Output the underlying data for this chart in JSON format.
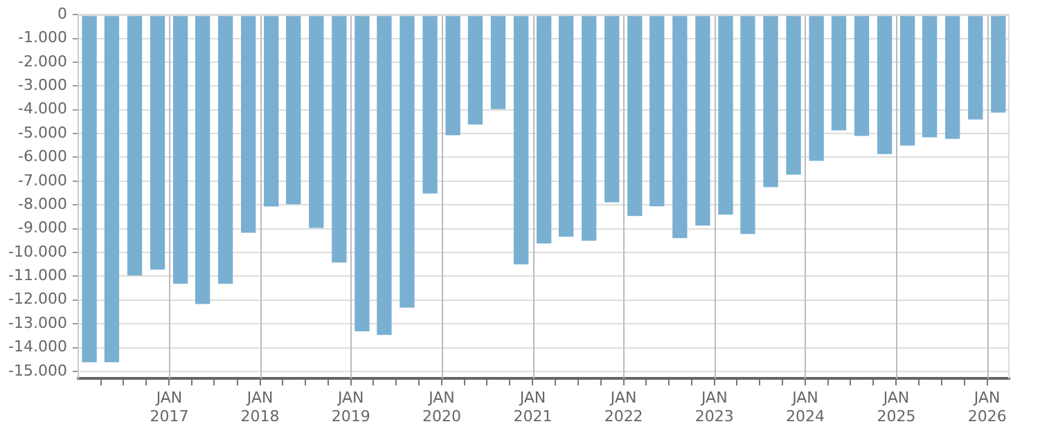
{
  "chart_data": {
    "type": "bar",
    "color": "#79afd1",
    "grid": true,
    "x": [
      "2016-02-15",
      "2016-05-15",
      "2016-08-15",
      "2016-11-15",
      "2017-02-15",
      "2017-05-15",
      "2017-08-15",
      "2017-11-15",
      "2018-02-15",
      "2018-05-15",
      "2018-08-15",
      "2018-11-15",
      "2019-02-15",
      "2019-05-15",
      "2019-08-15",
      "2019-11-15",
      "2020-02-15",
      "2020-05-15",
      "2020-08-15",
      "2020-11-15",
      "2021-02-15",
      "2021-05-15",
      "2021-08-15",
      "2021-11-15",
      "2022-02-15",
      "2022-05-15",
      "2022-08-15",
      "2022-11-15",
      "2023-02-15",
      "2023-05-15",
      "2023-08-15",
      "2023-11-15",
      "2024-02-15",
      "2024-05-15",
      "2024-08-15",
      "2024-11-15",
      "2025-02-15",
      "2025-05-15",
      "2025-08-15",
      "2025-11-15",
      "2026-02-15"
    ],
    "values": [
      -14600,
      -14600,
      -10950,
      -10700,
      -11300,
      -12150,
      -11300,
      -9150,
      -8050,
      -7950,
      -8950,
      -10400,
      -13300,
      -13450,
      -12300,
      -7500,
      -5050,
      -4600,
      -3950,
      -10480,
      -9600,
      -9320,
      -9490,
      -7870,
      -8450,
      -8040,
      -9380,
      -8850,
      -8390,
      -9200,
      -7230,
      -6710,
      -6130,
      -4850,
      -5080,
      -5840,
      -5490,
      -5140,
      -5200,
      -4390,
      -4100
    ],
    "ylim": [
      -15300,
      0
    ],
    "yticks": [
      0,
      {
        "value": -1000,
        "label": "-1.000"
      },
      {
        "value": -2000,
        "label": "-2.000"
      },
      {
        "value": -3000,
        "label": "-3.000"
      },
      {
        "value": -4000,
        "label": "-4.000"
      },
      {
        "value": -5000,
        "label": "-5.000"
      },
      {
        "value": -6000,
        "label": "-6.000"
      },
      {
        "value": -7000,
        "label": "-7.000"
      },
      {
        "value": -8000,
        "label": "-8.000"
      },
      {
        "value": -9000,
        "label": "-9.000"
      },
      {
        "value": -10000,
        "label": "-10.000"
      },
      {
        "value": -11000,
        "label": "-11.000"
      },
      {
        "value": -12000,
        "label": "-12.000"
      },
      {
        "value": -13000,
        "label": "-13.000"
      },
      {
        "value": -14000,
        "label": "-14.000"
      },
      {
        "value": -15000,
        "label": "-15.000"
      }
    ],
    "xlim": [
      "2016-01-01",
      "2026-04-01"
    ],
    "xticks": [
      {
        "value": "2016-04-01",
        "label": null
      },
      {
        "value": "2016-07-01",
        "label": null
      },
      {
        "value": "2016-10-01",
        "label": null
      },
      {
        "value": "2017-01-01",
        "label": "JAN 2017"
      },
      {
        "value": "2017-04-01",
        "label": null
      },
      {
        "value": "2017-07-01",
        "label": null
      },
      {
        "value": "2017-10-01",
        "label": null
      },
      {
        "value": "2018-01-01",
        "label": "JAN 2018"
      },
      {
        "value": "2018-04-01",
        "label": null
      },
      {
        "value": "2018-07-01",
        "label": null
      },
      {
        "value": "2018-10-01",
        "label": null
      },
      {
        "value": "2019-01-01",
        "label": "JAN 2019"
      },
      {
        "value": "2019-04-01",
        "label": null
      },
      {
        "value": "2019-07-01",
        "label": null
      },
      {
        "value": "2019-10-01",
        "label": null
      },
      {
        "value": "2020-01-01",
        "label": "JAN 2020"
      },
      {
        "value": "2020-04-01",
        "label": null
      },
      {
        "value": "2020-07-01",
        "label": null
      },
      {
        "value": "2020-10-01",
        "label": null
      },
      {
        "value": "2021-01-01",
        "label": "JAN 2021"
      },
      {
        "value": "2021-04-01",
        "label": null
      },
      {
        "value": "2021-07-01",
        "label": null
      },
      {
        "value": "2021-10-01",
        "label": null
      },
      {
        "value": "2022-01-01",
        "label": "JAN 2022"
      },
      {
        "value": "2022-04-01",
        "label": null
      },
      {
        "value": "2022-07-01",
        "label": null
      },
      {
        "value": "2022-10-01",
        "label": null
      },
      {
        "value": "2023-01-01",
        "label": "JAN 2023"
      },
      {
        "value": "2023-04-01",
        "label": null
      },
      {
        "value": "2023-07-01",
        "label": null
      },
      {
        "value": "2023-10-01",
        "label": null
      },
      {
        "value": "2024-01-01",
        "label": "JAN 2024"
      },
      {
        "value": "2024-04-01",
        "label": null
      },
      {
        "value": "2024-07-01",
        "label": null
      },
      {
        "value": "2024-10-01",
        "label": null
      },
      {
        "value": "2025-01-01",
        "label": "JAN 2025"
      },
      {
        "value": "2025-04-01",
        "label": null
      },
      {
        "value": "2025-07-01",
        "label": null
      },
      {
        "value": "2025-10-01",
        "label": null
      },
      {
        "value": "2026-01-01",
        "label": "JAN 2026"
      }
    ]
  }
}
